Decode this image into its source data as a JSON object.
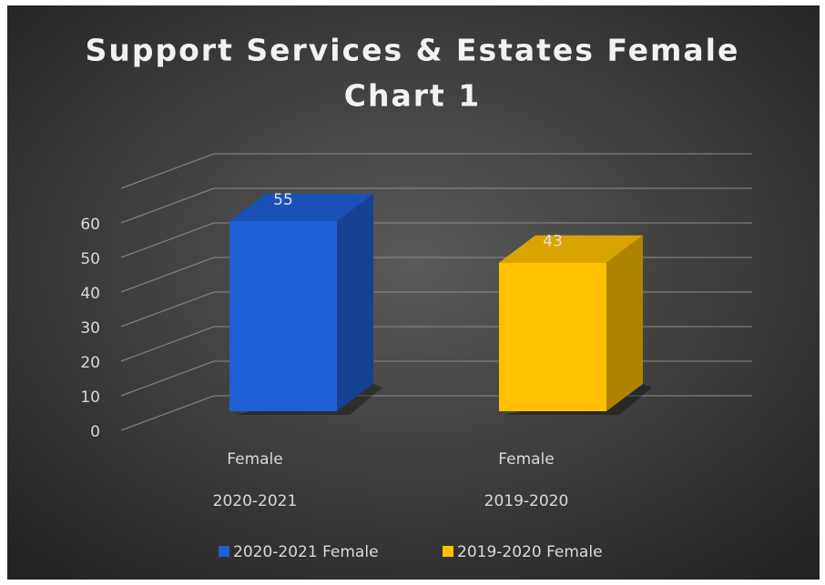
{
  "chart_data": {
    "type": "bar",
    "title": [
      "Support Services & Estates Female",
      "Chart 1"
    ],
    "categories": [
      [
        "Female",
        "2020-2021"
      ],
      [
        "Female",
        "2019-2020"
      ]
    ],
    "series": [
      {
        "name": "2020-2021 Female",
        "color": "#1f5fd6",
        "values": [
          55,
          null
        ]
      },
      {
        "name": "2019-2020 Female",
        "color": "#ffc000",
        "values": [
          null,
          43
        ]
      }
    ],
    "ylim": [
      0,
      70
    ],
    "yticks": [
      0,
      10,
      20,
      30,
      40,
      50,
      60
    ],
    "grid": true,
    "legend": "bottom"
  }
}
